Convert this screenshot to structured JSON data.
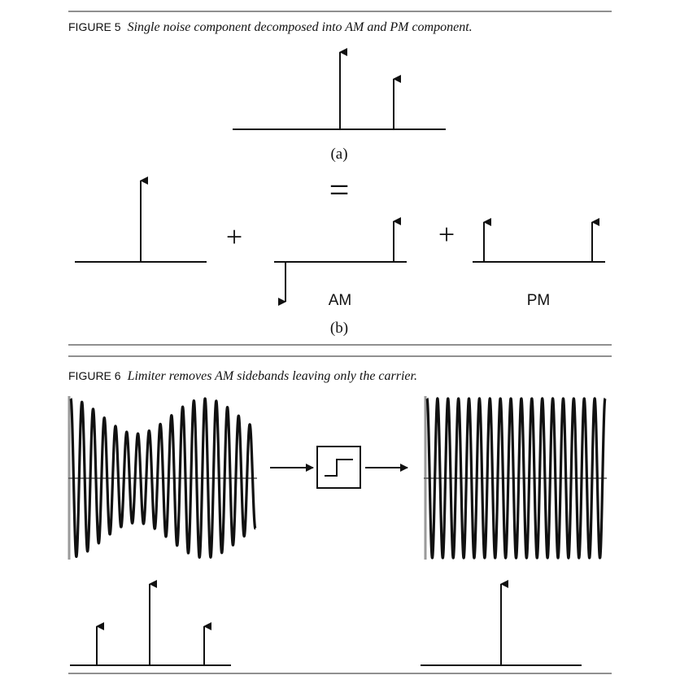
{
  "figure5": {
    "label": "FIGURE 5",
    "caption": "Single noise component decomposed into AM and PM component.",
    "part_a": "(a)",
    "equals_sign": "=",
    "part_b": "(b)",
    "plus_sign": "+",
    "am_label": "AM",
    "pm_label": "PM"
  },
  "figure6": {
    "label": "FIGURE 6",
    "caption": "Limiter removes AM sidebands leaving only the carrier."
  }
}
